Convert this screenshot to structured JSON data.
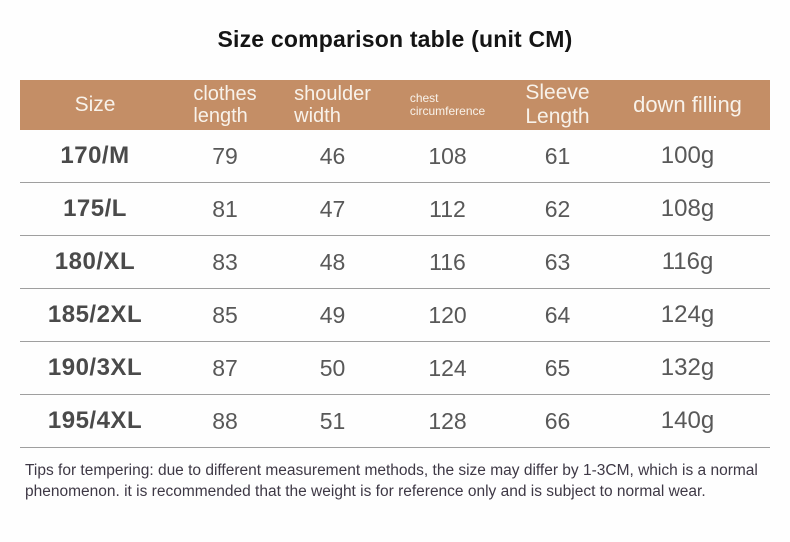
{
  "title": "Size comparison table (unit CM)",
  "table": {
    "header": [
      {
        "line1": "Size",
        "line2": ""
      },
      {
        "line1": "clothes",
        "line2": "length"
      },
      {
        "line1": "shoulder",
        "line2": "width"
      },
      {
        "line1": "chest",
        "line2": "circumference"
      },
      {
        "line1": "Sleeve",
        "line2": "Length"
      },
      {
        "line1": "down filling",
        "line2": ""
      }
    ],
    "rows": [
      [
        "170/M",
        "79",
        "46",
        "108",
        "61",
        "100g"
      ],
      [
        "175/L",
        "81",
        "47",
        "112",
        "62",
        "108g"
      ],
      [
        "180/XL",
        "83",
        "48",
        "116",
        "63",
        "116g"
      ],
      [
        "185/2XL",
        "85",
        "49",
        "120",
        "64",
        "124g"
      ],
      [
        "190/3XL",
        "87",
        "50",
        "124",
        "65",
        "132g"
      ],
      [
        "195/4XL",
        "88",
        "51",
        "128",
        "66",
        "140g"
      ]
    ]
  },
  "tips": {
    "line1": "Tips for tempering: due to different measurement methods, the size may differ by 1-3CM, which is a normal",
    "line2": "phenomenon. it is recommended that the weight is for reference only and is subject to normal wear."
  },
  "colors": {
    "header_bg": "#c48e66",
    "header_text": "#f8f2ea",
    "size_text": "#4a4a4a",
    "value_text": "#585858",
    "divider": "#9f9f9f",
    "tips_text": "#3e3845"
  }
}
